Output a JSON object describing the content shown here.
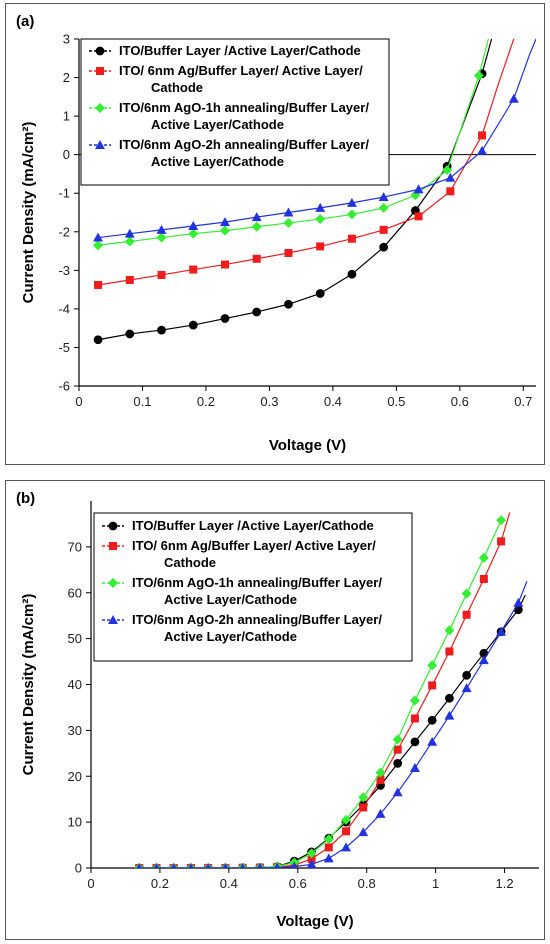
{
  "chart_data": [
    {
      "type": "line",
      "panel_label": "(a)",
      "xlabel": "Voltage (V)",
      "ylabel": "Current Density (mA/cm²)",
      "xlim": [
        0,
        0.72
      ],
      "ylim": [
        -6,
        3
      ],
      "xticks": [
        0,
        0.1,
        0.2,
        0.3,
        0.4,
        0.5,
        0.6,
        0.7
      ],
      "xtick_labels": [
        "0",
        "0.1",
        "0.2",
        "0.3",
        "0.4",
        "0.5",
        "0.6",
        "0.7"
      ],
      "yticks": [
        -6,
        -5,
        -4,
        -3,
        -2,
        -1,
        0,
        1,
        2,
        3
      ],
      "ytick_labels": [
        "-6",
        "-5",
        "-4",
        "-3",
        "-2",
        "-1",
        "0",
        "1",
        "2",
        "3"
      ],
      "zero_line": true,
      "grid": false,
      "legend_position": "top-left",
      "series": [
        {
          "name": "ITO/Buffer Layer /Active Layer/Cathode",
          "legend_lines": [
            "ITO/Buffer Layer /Active Layer/Cathode"
          ],
          "color": "#000000",
          "marker": "circle",
          "x": [
            0.03,
            0.08,
            0.13,
            0.18,
            0.23,
            0.28,
            0.33,
            0.38,
            0.43,
            0.48,
            0.53,
            0.58,
            0.635
          ],
          "y": [
            -4.8,
            -4.65,
            -4.55,
            -4.42,
            -4.25,
            -4.08,
            -3.88,
            -3.6,
            -3.1,
            -2.4,
            -1.45,
            -0.3,
            2.1
          ],
          "curve_extension": [
            [
              0.65,
              3.0
            ]
          ]
        },
        {
          "name": "ITO/ 6nm Ag/Buffer Layer/ Active Layer/ Cathode",
          "legend_lines": [
            "ITO/ 6nm Ag/Buffer Layer/ Active Layer/",
            "Cathode"
          ],
          "color": "#ee1c1c",
          "marker": "square",
          "x": [
            0.03,
            0.08,
            0.13,
            0.18,
            0.23,
            0.28,
            0.33,
            0.38,
            0.43,
            0.48,
            0.535,
            0.585,
            0.635
          ],
          "y": [
            -3.38,
            -3.25,
            -3.12,
            -2.98,
            -2.85,
            -2.7,
            -2.55,
            -2.38,
            -2.18,
            -1.95,
            -1.6,
            -0.95,
            0.5
          ],
          "curve_extension": [
            [
              0.66,
              1.8
            ],
            [
              0.685,
              3.0
            ]
          ]
        },
        {
          "name": "ITO/6nm AgO-1h annealing/Buffer Layer/ Active Layer/Cathode",
          "legend_lines": [
            "ITO/6nm AgO-1h annealing/Buffer Layer/",
            "Active Layer/Cathode"
          ],
          "color": "#33ee33",
          "marker": "diamond",
          "x": [
            0.03,
            0.08,
            0.13,
            0.18,
            0.23,
            0.28,
            0.33,
            0.38,
            0.43,
            0.48,
            0.53,
            0.58,
            0.63
          ],
          "y": [
            -2.35,
            -2.25,
            -2.15,
            -2.05,
            -1.97,
            -1.87,
            -1.77,
            -1.67,
            -1.55,
            -1.38,
            -1.05,
            -0.4,
            2.05
          ],
          "curve_extension": [
            [
              0.645,
              3.0
            ]
          ]
        },
        {
          "name": "ITO/6nm AgO-2h annealing/Buffer Layer/ Active Layer/Cathode",
          "legend_lines": [
            "ITO/6nm AgO-2h annealing/Buffer Layer/",
            "Active Layer/Cathode"
          ],
          "color": "#2233dd",
          "marker": "triangle",
          "x": [
            0.03,
            0.08,
            0.13,
            0.18,
            0.23,
            0.28,
            0.33,
            0.38,
            0.43,
            0.48,
            0.535,
            0.585,
            0.635,
            0.685
          ],
          "y": [
            -2.15,
            -2.05,
            -1.95,
            -1.85,
            -1.75,
            -1.62,
            -1.5,
            -1.38,
            -1.25,
            -1.1,
            -0.9,
            -0.6,
            0.1,
            1.45
          ],
          "curve_extension": [
            [
              0.71,
              2.6
            ],
            [
              0.72,
              3.0
            ]
          ]
        }
      ]
    },
    {
      "type": "line",
      "panel_label": "(b)",
      "xlabel": "Voltage (V)",
      "ylabel": "Current Density (mA/cm²)",
      "xlim": [
        0,
        1.3
      ],
      "ylim": [
        0,
        80
      ],
      "xticks": [
        0,
        0.2,
        0.4,
        0.6,
        0.8,
        1.0,
        1.2
      ],
      "xtick_labels": [
        "0",
        "0.2",
        "0.4",
        "0.6",
        "0.8",
        "1",
        "1.2"
      ],
      "yticks": [
        0,
        10,
        20,
        30,
        40,
        50,
        60,
        70
      ],
      "ytick_labels": [
        "0",
        "10",
        "20",
        "30",
        "40",
        "50",
        "60",
        "70"
      ],
      "grid": false,
      "legend_position": "top-left",
      "series": [
        {
          "name": "ITO/Buffer Layer /Active Layer/Cathode",
          "legend_lines": [
            "ITO/Buffer Layer /Active Layer/Cathode"
          ],
          "color": "#000000",
          "marker": "circle",
          "x": [
            0.14,
            0.19,
            0.24,
            0.29,
            0.34,
            0.39,
            0.44,
            0.49,
            0.54,
            0.59,
            0.64,
            0.69,
            0.74,
            0.79,
            0.84,
            0.89,
            0.94,
            0.99,
            1.04,
            1.09,
            1.14,
            1.19,
            1.24
          ],
          "y": [
            0,
            0,
            0,
            0,
            0,
            0,
            0.05,
            0.1,
            0.3,
            1.5,
            3.5,
            6.5,
            10,
            13.8,
            18,
            22.8,
            27.5,
            32.2,
            37,
            42,
            46.8,
            51.5,
            56.3
          ],
          "curve_extension": [
            [
              1.26,
              59.5
            ]
          ]
        },
        {
          "name": "ITO/ 6nm Ag/Buffer Layer/ Active Layer/ Cathode",
          "legend_lines": [
            "ITO/ 6nm Ag/Buffer Layer/ Active Layer/",
            "Cathode"
          ],
          "color": "#ee1c1c",
          "marker": "square",
          "x": [
            0.14,
            0.19,
            0.24,
            0.29,
            0.34,
            0.39,
            0.44,
            0.49,
            0.54,
            0.59,
            0.64,
            0.69,
            0.74,
            0.79,
            0.84,
            0.89,
            0.94,
            0.99,
            1.04,
            1.09,
            1.14,
            1.19
          ],
          "y": [
            0,
            0,
            0,
            0,
            0,
            0,
            0.05,
            0.1,
            0.2,
            0.6,
            2,
            4.5,
            8,
            13.2,
            19.2,
            25.8,
            32.6,
            39.8,
            47.2,
            55.2,
            63,
            71.2
          ],
          "curve_extension": [
            [
              1.215,
              77.5
            ]
          ]
        },
        {
          "name": "ITO/6nm AgO-1h annealing/Buffer Layer/ Active Layer/Cathode",
          "legend_lines": [
            "ITO/6nm AgO-1h annealing/Buffer Layer/",
            "Active Layer/Cathode"
          ],
          "color": "#33ee33",
          "marker": "diamond",
          "x": [
            0.14,
            0.19,
            0.24,
            0.29,
            0.34,
            0.39,
            0.44,
            0.49,
            0.54,
            0.59,
            0.64,
            0.69,
            0.74,
            0.79,
            0.84,
            0.89,
            0.94,
            0.99,
            1.04,
            1.09,
            1.14,
            1.19
          ],
          "y": [
            0,
            0,
            0,
            0,
            0,
            0,
            0.05,
            0.1,
            0.3,
            1.2,
            3.2,
            6.3,
            10.5,
            15.4,
            20.8,
            28,
            36.5,
            44.2,
            51.8,
            59.8,
            67.6,
            75.8
          ],
          "curve_extension": []
        },
        {
          "name": "ITO/6nm AgO-2h annealing/Buffer Layer/ Active Layer/Cathode",
          "legend_lines": [
            "ITO/6nm AgO-2h annealing/Buffer Layer/",
            "Active Layer/Cathode"
          ],
          "color": "#2233dd",
          "marker": "triangle",
          "x": [
            0.14,
            0.19,
            0.24,
            0.29,
            0.34,
            0.39,
            0.44,
            0.49,
            0.54,
            0.59,
            0.64,
            0.69,
            0.74,
            0.79,
            0.84,
            0.89,
            0.94,
            0.99,
            1.04,
            1.09,
            1.14,
            1.19,
            1.24
          ],
          "y": [
            0,
            0,
            0,
            0,
            0,
            0,
            0,
            0.05,
            0.1,
            0.3,
            0.8,
            2.1,
            4.5,
            7.8,
            11.8,
            16.5,
            21.8,
            27.5,
            33.2,
            39.2,
            45.3,
            51.5,
            57.8
          ],
          "curve_extension": [
            [
              1.265,
              62.5
            ]
          ]
        }
      ]
    }
  ]
}
